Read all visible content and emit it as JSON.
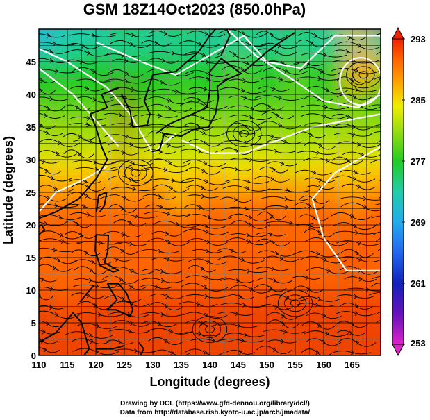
{
  "title": "GSM 18Z14Oct2023 (850.0hPa)",
  "xlabel": "Longitude (degrees)",
  "ylabel": "Latitude  (degrees)",
  "credits": [
    "Drawing by DCL (https://www.gfd-dennou.org/library/dcl/)",
    "Data from http://database.rish.kyoto-u.ac.jp/arch/jmadata/"
  ],
  "chart_data": {
    "type": "heatmap",
    "title": "GSM 18Z14Oct2023 (850.0hPa)",
    "xlabel": "Longitude (degrees)",
    "ylabel": "Latitude  (degrees)",
    "xlim": [
      110,
      170
    ],
    "ylim": [
      0,
      50
    ],
    "x_ticks": [
      110,
      115,
      120,
      125,
      130,
      135,
      140,
      145,
      150,
      155,
      160,
      165
    ],
    "y_ticks": [
      0,
      5,
      10,
      15,
      20,
      25,
      30,
      35,
      40,
      45
    ],
    "grid": true,
    "colorbar": {
      "min": 253,
      "max": 293,
      "labels": [
        293,
        285,
        277,
        269,
        261,
        253
      ],
      "colors": {
        "253": "#dd22cc",
        "257": "#6611bb",
        "261": "#1122bb",
        "265": "#2266ee",
        "269": "#22aaee",
        "273": "#22ccaa",
        "277": "#22cc22",
        "281": "#99dd11",
        "283": "#eeee00",
        "285": "#ffaa00",
        "288": "#ff6600",
        "291": "#ee4400",
        "293": "#ee2200"
      }
    },
    "temperature_samples": [
      {
        "lon": 112,
        "lat": 48,
        "t": 273
      },
      {
        "lon": 120,
        "lat": 48,
        "t": 275
      },
      {
        "lon": 130,
        "lat": 48,
        "t": 277
      },
      {
        "lon": 145,
        "lat": 48,
        "t": 279
      },
      {
        "lon": 160,
        "lat": 48,
        "t": 280
      },
      {
        "lon": 167,
        "lat": 44,
        "t": 286
      },
      {
        "lon": 115,
        "lat": 40,
        "t": 279
      },
      {
        "lon": 135,
        "lat": 40,
        "t": 280
      },
      {
        "lon": 150,
        "lat": 40,
        "t": 281
      },
      {
        "lon": 112,
        "lat": 33,
        "t": 282
      },
      {
        "lon": 135,
        "lat": 33,
        "t": 281
      },
      {
        "lon": 160,
        "lat": 33,
        "t": 281
      },
      {
        "lon": 112,
        "lat": 27,
        "t": 285
      },
      {
        "lon": 140,
        "lat": 27,
        "t": 284
      },
      {
        "lon": 165,
        "lat": 27,
        "t": 287
      },
      {
        "lon": 120,
        "lat": 20,
        "t": 288
      },
      {
        "lon": 150,
        "lat": 20,
        "t": 289
      },
      {
        "lon": 120,
        "lat": 10,
        "t": 290
      },
      {
        "lon": 150,
        "lat": 10,
        "t": 291
      },
      {
        "lon": 125,
        "lat": 3,
        "t": 292
      }
    ]
  },
  "colors": {
    "frame": "#000000",
    "grid": "#000000",
    "contour": "#ffffff",
    "coast": "#000000"
  }
}
